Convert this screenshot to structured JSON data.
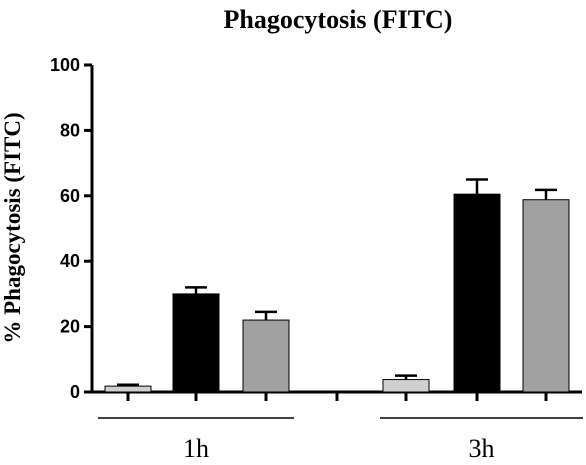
{
  "chart_data": {
    "type": "bar",
    "title": "Phagocytosis (FITC)",
    "ylabel": "% Phagocytosis  (FITC)",
    "xlabel": "",
    "ylim": [
      0,
      100
    ],
    "yticks": [
      "0",
      "20",
      "40",
      "60",
      "80",
      "100"
    ],
    "groups": [
      "1h",
      "3h"
    ],
    "series": [
      {
        "color": "#d0d0d0",
        "values": [
          1.8,
          3.8
        ],
        "errors": [
          0.4,
          1.2
        ]
      },
      {
        "color": "#000000",
        "values": [
          30,
          60.5
        ],
        "errors": [
          2,
          4.5
        ]
      },
      {
        "color": "#a0a0a0",
        "values": [
          22,
          58.8
        ],
        "errors": [
          2.5,
          3
        ]
      }
    ],
    "grid": false,
    "legend": "none"
  }
}
